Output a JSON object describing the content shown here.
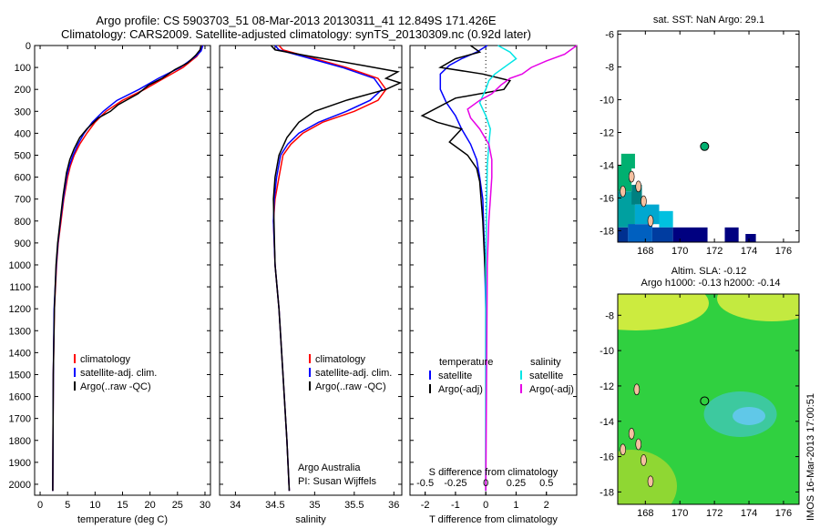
{
  "header": {
    "line1": "Argo profile: CS 5903703_51 08-Mar-2013 20130311_41 12.849S 171.426E",
    "line2": "Climatology: CARS2009. Satellite-adjusted climatology: synTS_20130309.nc (0.92d later)"
  },
  "colors": {
    "climatology": "#ff0000",
    "satellite": "#0000ff",
    "argo": "#000000",
    "sat_salinity": "#00e5e5",
    "argo_salinity_diff": "#e600e6",
    "land": "#f4c0a0",
    "sst_high": "#00b070",
    "sst_low": "#000080",
    "sla_field": "#30d040",
    "sla_high": "#e8f040"
  },
  "side_panels": {
    "sst_title": "sat. SST: NaN Argo: 29.1",
    "sla_title_line1": "Altim. SLA: -0.12",
    "sla_title_line2": "Argo h1000: -0.13 h2000: -0.14",
    "stamp": "IMOS 16-Mar-2013 17:00:51"
  },
  "credits": {
    "line1": "Argo Australia",
    "line2": "PI: Susan Wijffels"
  },
  "chart_data": [
    {
      "type": "line",
      "panel": "temperature",
      "xlabel": "temperature (deg C)",
      "ylabel": "",
      "xlim": [
        -1,
        31
      ],
      "ylim": [
        2050,
        0
      ],
      "xticks": [
        0,
        5,
        10,
        15,
        20,
        25,
        30
      ],
      "yticks": [
        0,
        100,
        200,
        300,
        400,
        500,
        600,
        700,
        800,
        900,
        1000,
        1100,
        1200,
        1300,
        1400,
        1500,
        1600,
        1700,
        1800,
        1900,
        2000
      ],
      "legend": [
        "climatology",
        "satellite-adj. clim.",
        "Argo(..raw -QC)"
      ],
      "legend_position": "lower-left",
      "series": [
        {
          "name": "climatology",
          "color_key": "climatology",
          "x": [
            29.4,
            29.2,
            28.5,
            26,
            22.5,
            19,
            15,
            12,
            10,
            8.5,
            7.2,
            6.2,
            5.5,
            5,
            4.3,
            3.8,
            3.3,
            3,
            2.8,
            2.6,
            2.4,
            2.3
          ],
          "y": [
            0,
            25,
            50,
            100,
            150,
            200,
            250,
            300,
            350,
            400,
            450,
            500,
            550,
            600,
            700,
            800,
            900,
            1000,
            1100,
            1200,
            1500,
            2030
          ]
        },
        {
          "name": "satellite-adj. clim.",
          "color_key": "satellite",
          "x": [
            29.6,
            29.3,
            28.3,
            25.5,
            21.5,
            18,
            14,
            11.5,
            9.5,
            8,
            6.9,
            6,
            5.3,
            4.8,
            4.2,
            3.7,
            3.25,
            2.95,
            2.75,
            2.55,
            2.4,
            2.3
          ],
          "y": [
            0,
            25,
            50,
            100,
            150,
            200,
            250,
            300,
            350,
            400,
            450,
            500,
            550,
            600,
            700,
            800,
            900,
            1000,
            1100,
            1200,
            1500,
            2030
          ]
        },
        {
          "name": "Argo(..raw -QC)",
          "color_key": "argo",
          "x": [
            29.3,
            29.1,
            28.3,
            26.8,
            24.5,
            22.2,
            19.8,
            17.8,
            14.2,
            12.8,
            10.6,
            8.5,
            7.2,
            6.2,
            5.4,
            4.8,
            4.2,
            3.7,
            3.2,
            2.9,
            2.6,
            2.4,
            2.3
          ],
          "y": [
            0,
            20,
            45,
            80,
            110,
            150,
            180,
            220,
            270,
            300,
            330,
            380,
            420,
            470,
            520,
            580,
            680,
            790,
            900,
            1000,
            1200,
            1500,
            2030
          ]
        }
      ]
    },
    {
      "type": "line",
      "panel": "salinity",
      "xlabel": "salinity",
      "ylabel": "",
      "xlim": [
        33.8,
        36.1
      ],
      "ylim": [
        2050,
        0
      ],
      "xticks": [
        34,
        34.5,
        35,
        35.5,
        36
      ],
      "xtick_labels": [
        "34",
        "34.5",
        "35",
        "35.5",
        "36"
      ],
      "legend": [
        "climatology",
        "satellite-adj. clim.",
        "Argo(..raw -QC)"
      ],
      "legend_position": "lower-right",
      "series": [
        {
          "name": "climatology",
          "color_key": "climatology",
          "x": [
            34.55,
            34.6,
            34.9,
            35.4,
            35.8,
            35.9,
            35.8,
            35.5,
            35.1,
            34.85,
            34.7,
            34.6,
            34.55,
            34.5,
            34.48,
            34.5,
            34.55,
            34.6,
            34.65,
            34.68
          ],
          "y": [
            0,
            20,
            50,
            100,
            150,
            200,
            250,
            300,
            350,
            400,
            450,
            500,
            600,
            700,
            800,
            1000,
            1200,
            1500,
            1800,
            2030
          ]
        },
        {
          "name": "satellite-adj. clim.",
          "color_key": "satellite",
          "x": [
            34.5,
            34.55,
            34.85,
            35.35,
            35.75,
            35.85,
            35.7,
            35.4,
            35.05,
            34.8,
            34.66,
            34.57,
            34.52,
            34.49,
            34.48,
            34.5,
            34.55,
            34.6,
            34.65,
            34.68
          ],
          "y": [
            0,
            20,
            50,
            100,
            150,
            200,
            250,
            300,
            350,
            400,
            450,
            500,
            600,
            700,
            800,
            1000,
            1200,
            1500,
            1800,
            2030
          ]
        },
        {
          "name": "Argo(..raw -QC)",
          "color_key": "argo",
          "x": [
            34.45,
            34.5,
            34.95,
            35.6,
            36.05,
            35.9,
            36.08,
            35.9,
            35.4,
            35.0,
            34.8,
            34.65,
            34.55,
            34.5,
            34.48,
            34.5,
            34.55,
            34.6,
            34.65,
            34.68
          ],
          "y": [
            0,
            20,
            50,
            90,
            120,
            150,
            170,
            200,
            250,
            300,
            350,
            420,
            500,
            600,
            700,
            1000,
            1200,
            1500,
            1800,
            2030
          ]
        }
      ]
    },
    {
      "type": "line",
      "panel": "difference",
      "xlabel": "T difference from climatology",
      "top_label": "S difference from climatology",
      "xlim": [
        -2.5,
        3
      ],
      "ylim": [
        2050,
        0
      ],
      "xticks": [
        -2,
        -1,
        0,
        1,
        2
      ],
      "top_ticks": [
        "-0.5",
        "-0.25",
        "0",
        "0.25",
        "0.5"
      ],
      "legend_temperature_title": "temperature",
      "legend_salinity_title": "salinity",
      "legend": [
        "satellite",
        "Argo(-adj)",
        "satellite",
        "Argo(-adj)"
      ],
      "legend_position": "lower-center",
      "series": [
        {
          "name": "satellite",
          "group": "temperature",
          "color_key": "satellite",
          "x": [
            0.05,
            -0.3,
            -0.8,
            -1.2,
            -1.5,
            -1.5,
            -1.3,
            -1.0,
            -0.8,
            -0.5,
            -0.3,
            -0.2,
            -0.1,
            -0.05,
            0,
            0
          ],
          "y": [
            0,
            30,
            60,
            90,
            130,
            200,
            260,
            320,
            380,
            450,
            520,
            600,
            700,
            900,
            1200,
            2030
          ]
        },
        {
          "name": "Argo(-adj)",
          "group": "temperature",
          "color_key": "argo",
          "x": [
            -0.5,
            -0.2,
            -1.0,
            -1.5,
            -0.1,
            0.8,
            0.6,
            -1.0,
            -2.1,
            -1.6,
            -0.8,
            -1.2,
            -0.6,
            -0.3,
            -0.2,
            -0.1,
            0,
            0
          ],
          "y": [
            0,
            30,
            60,
            100,
            130,
            160,
            200,
            240,
            320,
            350,
            380,
            440,
            500,
            560,
            620,
            800,
            1100,
            2030
          ]
        },
        {
          "name": "satellite",
          "group": "salinity",
          "color_key": "sat_salinity",
          "x": [
            0.4,
            0.8,
            1.0,
            0.7,
            0.3,
            0.1,
            0.0,
            -0.2,
            0.0,
            0.15,
            0.1,
            0.05,
            0.03,
            0.0,
            0.0
          ],
          "y": [
            0,
            30,
            60,
            90,
            130,
            160,
            200,
            260,
            320,
            380,
            450,
            550,
            700,
            1000,
            2030
          ]
        },
        {
          "name": "Argo(-adj)",
          "group": "salinity",
          "color_key": "argo_salinity_diff",
          "x": [
            3.0,
            2.6,
            2.0,
            1.5,
            1.2,
            0.8,
            0.5,
            0.2,
            -0.2,
            -0.6,
            -0.5,
            -0.2,
            0.1,
            0.2,
            0.2,
            0.15,
            0.1,
            0.05,
            0.0
          ],
          "y": [
            0,
            40,
            70,
            100,
            130,
            150,
            180,
            220,
            250,
            290,
            330,
            380,
            450,
            520,
            600,
            700,
            800,
            1000,
            2030
          ]
        }
      ]
    },
    {
      "type": "heatmap",
      "panel": "sst_map",
      "title": "sat. SST: NaN Argo: 29.1",
      "xlim": [
        166.4,
        176.9
      ],
      "ylim": [
        -18.7,
        -5.8
      ],
      "xticks": [
        168,
        170,
        172,
        174,
        176
      ],
      "yticks": [
        -6,
        -8,
        -10,
        -12,
        -14,
        -16,
        -18
      ],
      "argo_position": [
        171.43,
        -12.85
      ]
    },
    {
      "type": "heatmap",
      "panel": "sla_map",
      "title": "Altim. SLA: -0.12",
      "subtitle": "Argo h1000: -0.13 h2000: -0.14",
      "xlim": [
        166.4,
        176.9
      ],
      "ylim": [
        -18.7,
        -6.8
      ],
      "xticks": [
        168,
        170,
        172,
        174,
        176
      ],
      "yticks": [
        -8,
        -10,
        -12,
        -14,
        -16,
        -18
      ],
      "argo_position": [
        171.43,
        -12.85
      ]
    }
  ]
}
